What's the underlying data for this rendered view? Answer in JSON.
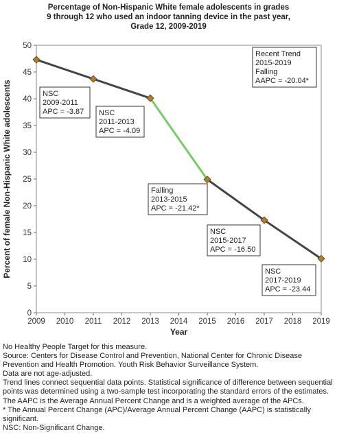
{
  "title_lines": [
    "Percentage of Non-Hispanic White female adolescents in grades",
    "9 through 12 who used an indoor tanning device in the past year,",
    "Grade 12,  2009-2019"
  ],
  "chart_data": {
    "type": "line",
    "x": [
      2009,
      2011,
      2013,
      2015,
      2017,
      2019
    ],
    "series": [
      {
        "values": [
          47.3,
          43.7,
          40.1,
          24.9,
          17.3,
          10.1
        ]
      }
    ],
    "xlabel": "Year",
    "ylabel": "Percent of female Non-Hispanic White adolescents",
    "xlim": [
      2009,
      2019
    ],
    "ylim": [
      0,
      50
    ],
    "x_ticks": [
      2009,
      2010,
      2011,
      2012,
      2013,
      2014,
      2015,
      2016,
      2017,
      2018,
      2019
    ],
    "y_ticks": [
      0,
      5,
      10,
      15,
      20,
      25,
      30,
      35,
      40,
      45,
      50
    ],
    "segments": [
      {
        "from": 2009,
        "to": 2013,
        "color": "#444444"
      },
      {
        "from": 2013,
        "to": 2015,
        "color": "#77cc66"
      },
      {
        "from": 2015,
        "to": 2019,
        "color": "#444444"
      }
    ],
    "marker_color": "#b07d2e",
    "annotations": [
      {
        "lines": [
          "NSC",
          "2009-2011",
          "APC = -3.87"
        ]
      },
      {
        "lines": [
          "NSC",
          "2011-2013",
          "APC = -4.09"
        ]
      },
      {
        "lines": [
          "Falling",
          "2013-2015",
          "APC = -21.42*"
        ]
      },
      {
        "lines": [
          "NSC",
          "2015-2017",
          "APC = -16.50"
        ]
      },
      {
        "lines": [
          "NSC",
          "2017-2019",
          "APC = -23.44"
        ]
      },
      {
        "lines": [
          "Recent Trend",
          "2015-2019",
          "Falling",
          "AAPC = -20.04*"
        ]
      }
    ]
  },
  "notes": [
    "No Healthy People Target for this measure.",
    "Source: Centers for Disease Control and Prevention, National Center for Chronic Disease Prevention and Health Promotion. Youth Risk Behavior Surveillance System.",
    "Data are not age-adjusted.",
    "Trend lines connect sequential data points. Statistical significance of difference between sequential points was determined using a two-sample test incorporating the standard errors of the estimates.",
    "The AAPC is the Average Annual Percent Change and is a weighted average of the APCs.",
    "* The Annual Percent Change (APC)/Average Annual Percent Change (AAPC) is statistically significant.",
    "NSC: Non-Significant Change."
  ]
}
